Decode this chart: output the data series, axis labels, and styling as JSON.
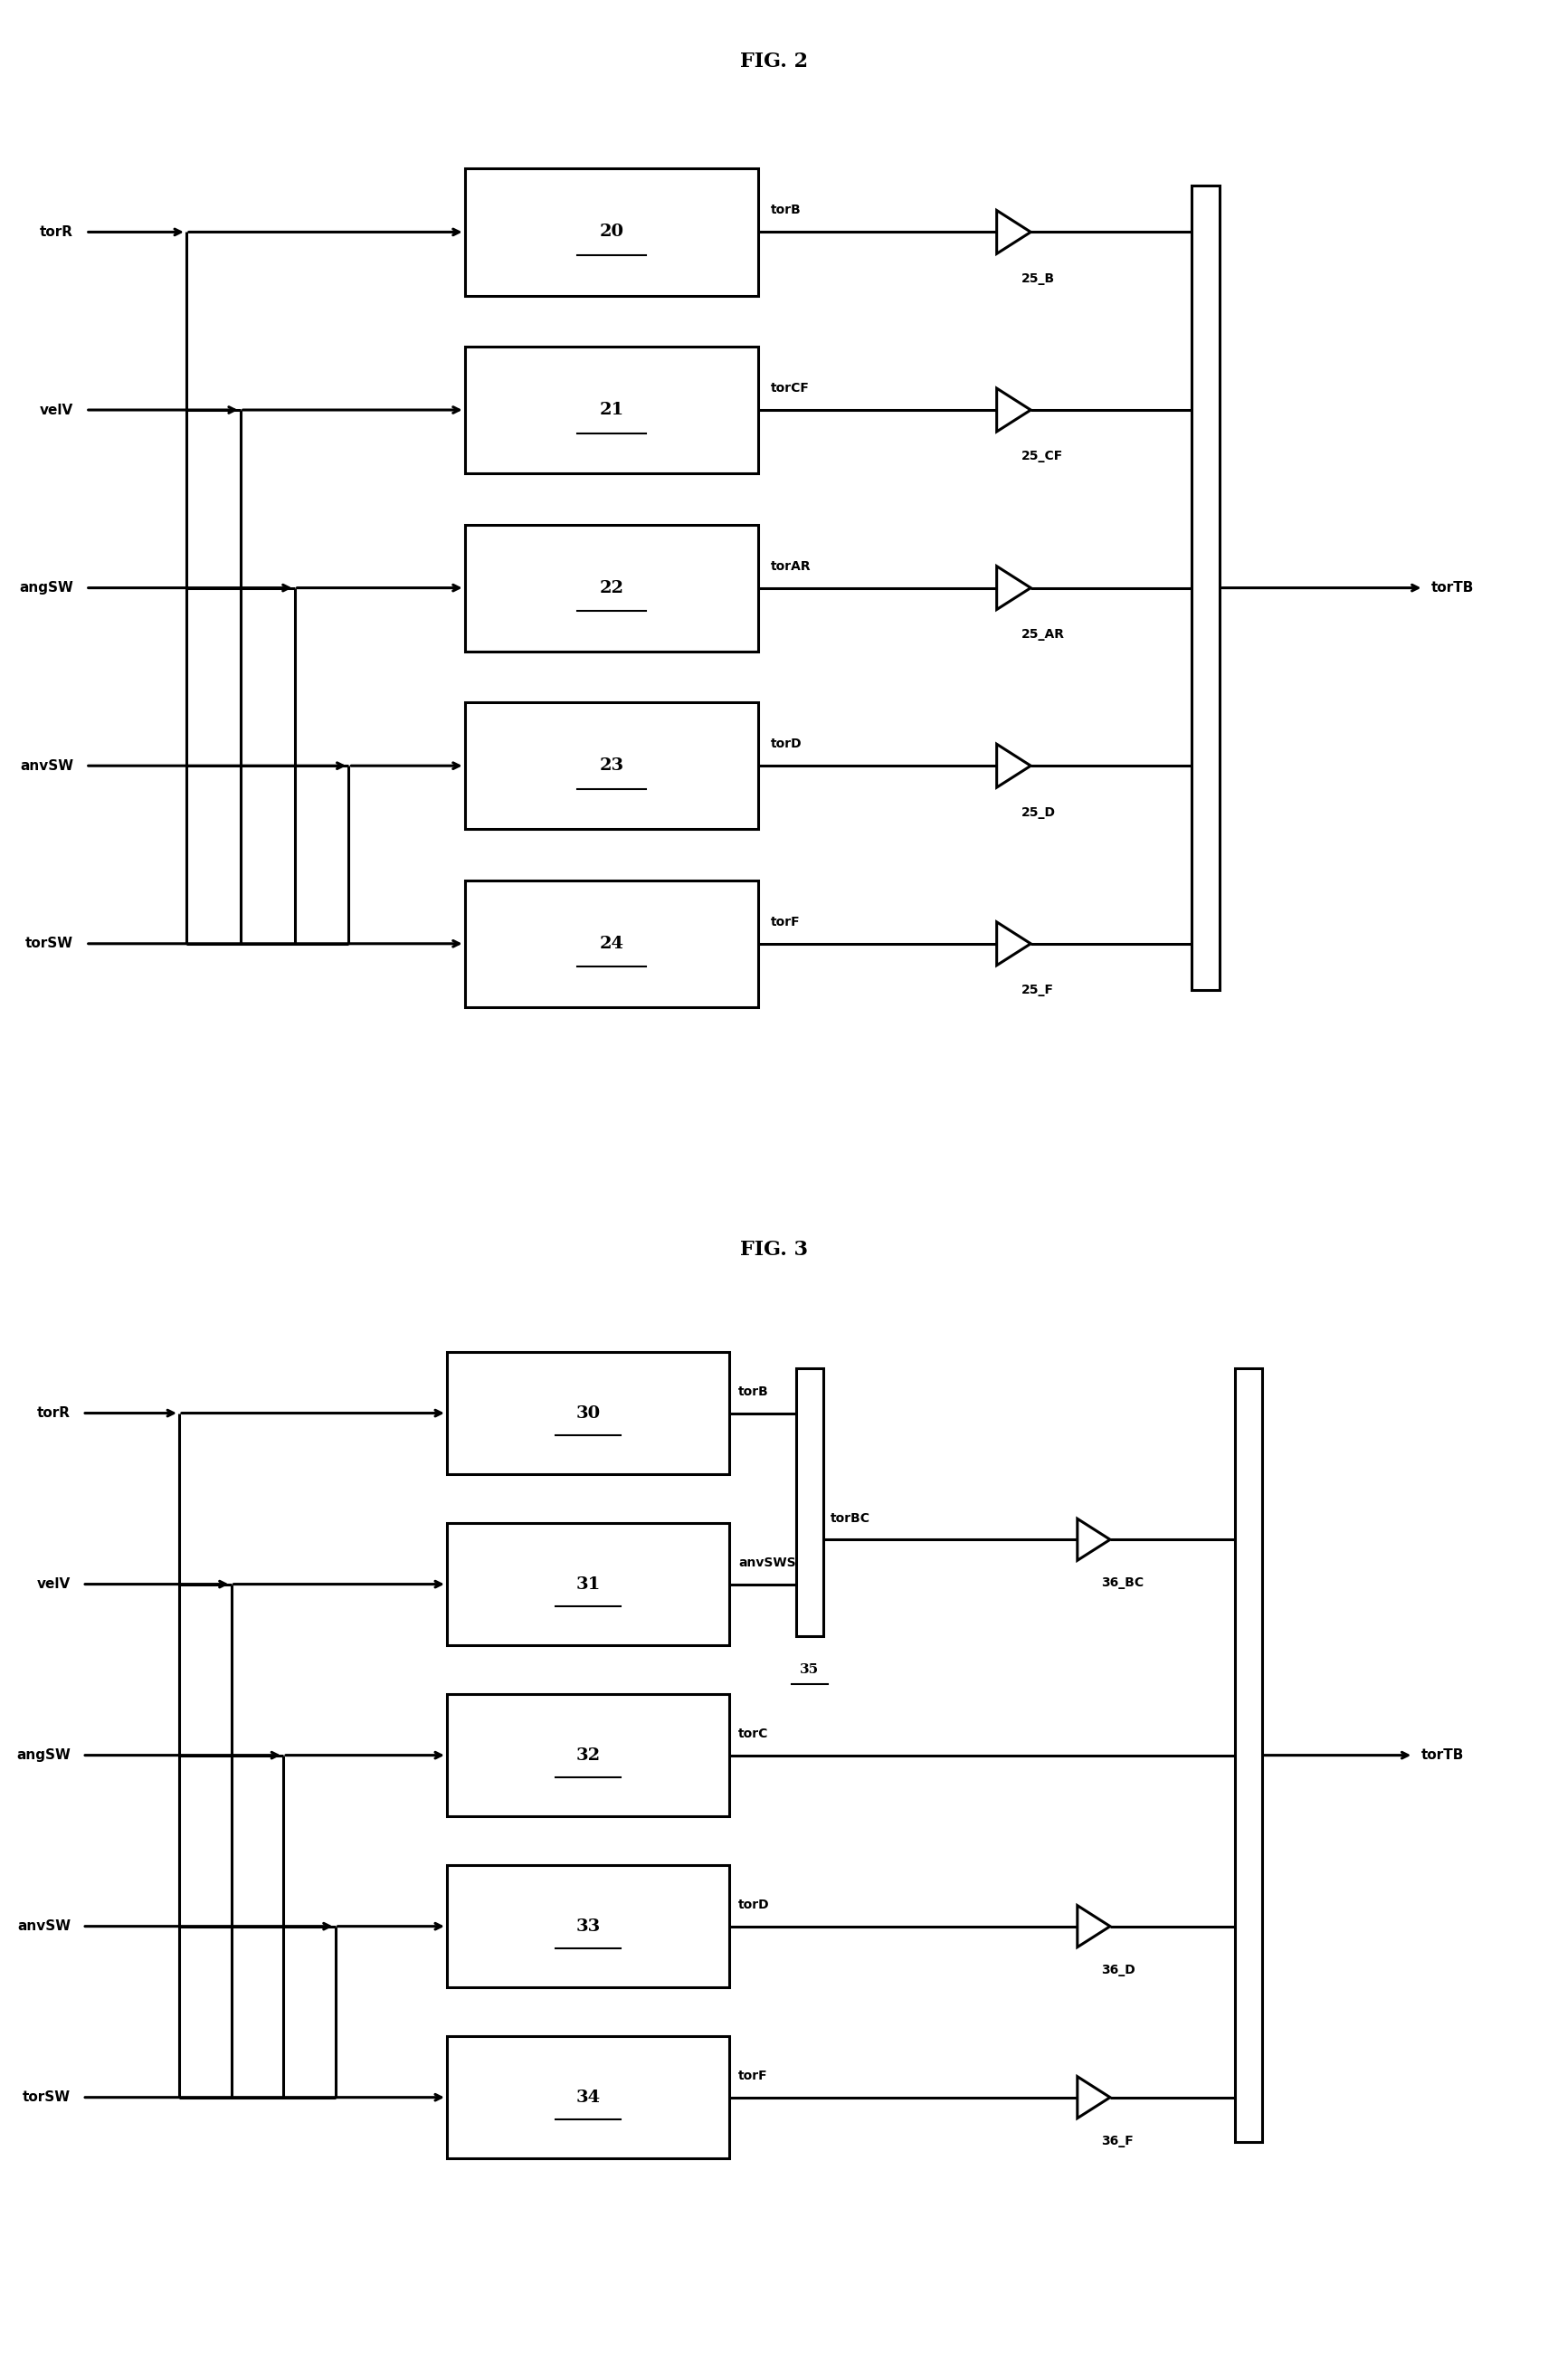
{
  "fig2": {
    "title": "FIG. 2",
    "inputs": [
      "torR",
      "velV",
      "angSW",
      "anvSW",
      "torSW"
    ],
    "block_ids": [
      "20",
      "21",
      "22",
      "23",
      "24"
    ],
    "out_labels": [
      "torB",
      "torCF",
      "torAR",
      "torD",
      "torF"
    ],
    "tri_labels": [
      "25_B",
      "25_CF",
      "25_AR",
      "25_D",
      "25_F"
    ],
    "output": "torTB"
  },
  "fig3": {
    "title": "FIG. 3",
    "inputs": [
      "torR",
      "velV",
      "angSW",
      "anvSW",
      "torSW"
    ],
    "block_ids": [
      "30",
      "31",
      "32",
      "33",
      "34"
    ],
    "out_labels": [
      "torB",
      "anvSWS",
      "torC",
      "torD",
      "torF"
    ],
    "mid_bus_label": "35",
    "tri_out_labels": [
      "torBC",
      "",
      ""
    ],
    "tri_labels": [
      "36_BC",
      "36_D",
      "36_F"
    ],
    "output": "torTB"
  },
  "lw": 2.2,
  "blw": 2.2,
  "fs_title": 16,
  "fs_block": 14,
  "fs_label": 11,
  "bg": "#ffffff",
  "lc": "#000000"
}
